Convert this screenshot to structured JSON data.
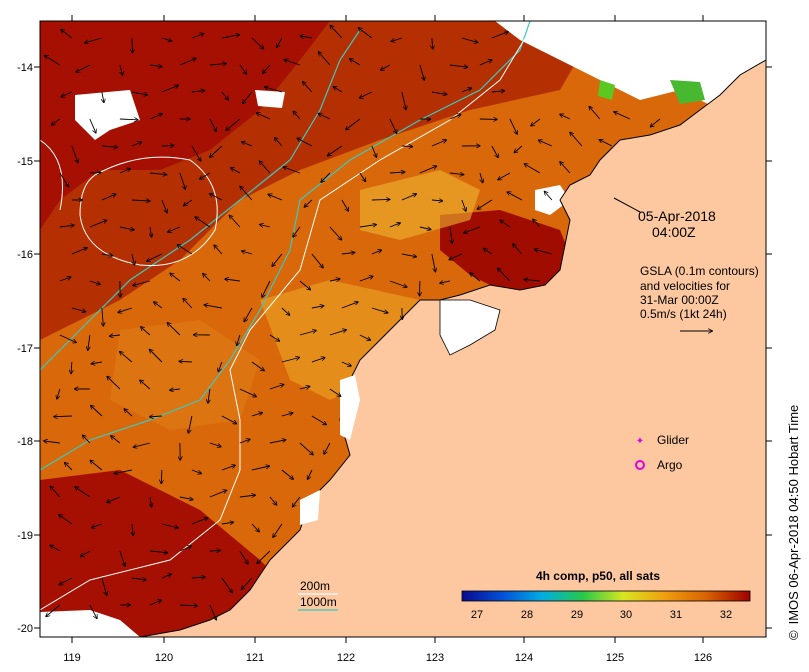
{
  "map": {
    "date": "05-Apr-2018",
    "time": "04:00Z",
    "credit": "IMOS 06-Apr-2018 04:50 Hobart Time",
    "credit_symbol": "©",
    "lon_ticks": [
      "119",
      "120",
      "121",
      "122",
      "123",
      "124",
      "125",
      "126"
    ],
    "lat_ticks": [
      "-14",
      "-15",
      "-16",
      "-17",
      "-18",
      "-19",
      "-20"
    ],
    "gsla_note": [
      "GSLA (0.1m contours)",
      "and velocities for",
      "31-Mar 00:00Z",
      "0.5m/s (1kt 24h)"
    ],
    "legend": {
      "glider": "Glider",
      "argo": "Argo"
    },
    "bathy": {
      "line200": "200m",
      "line1000": "1000m",
      "color200": "#ffffff",
      "color1000": "#3cc8c0"
    },
    "colorbar": {
      "title": "4h comp, p50, all sats",
      "ticks": [
        "27",
        "28",
        "29",
        "30",
        "31",
        "32"
      ],
      "colors": [
        "#0a0a8c",
        "#0050d8",
        "#00aee0",
        "#28c84a",
        "#d8e620",
        "#f0a010",
        "#d86200",
        "#a00000"
      ]
    },
    "colors": {
      "land": "#fdc8a0",
      "sea_dark": "#a81000",
      "sea_mid": "#d05a08",
      "sea_light": "#e89a20",
      "glider": "#e000e0"
    }
  }
}
